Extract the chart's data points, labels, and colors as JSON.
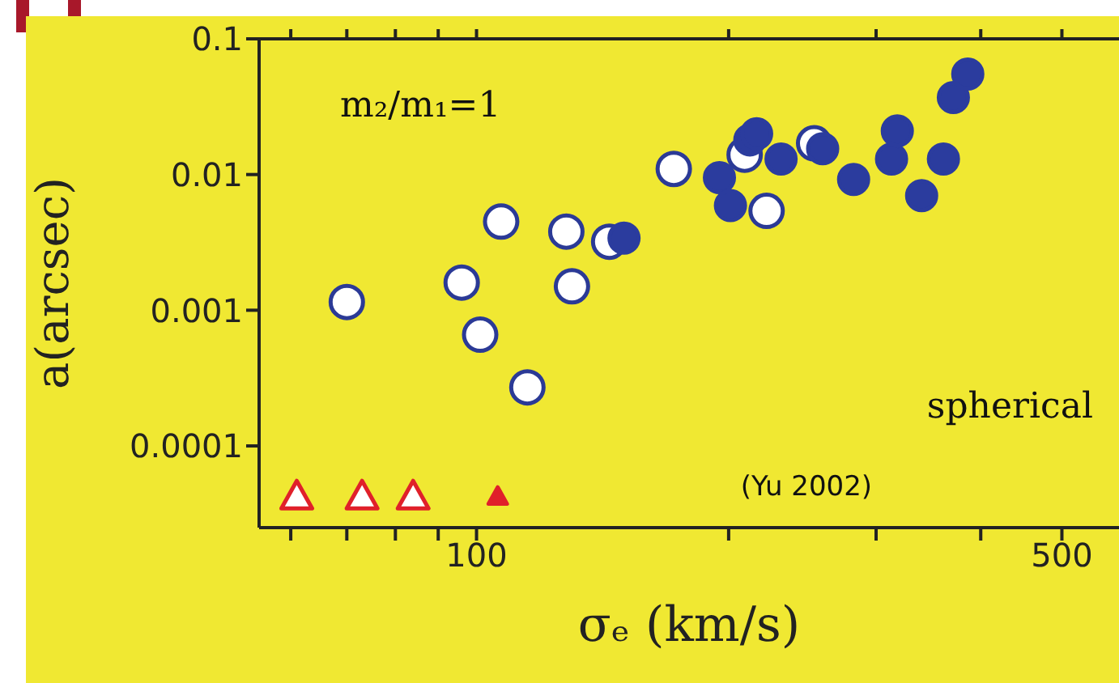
{
  "chart_data": {
    "type": "scatter",
    "xlabel": "σₑ (km/s)",
    "ylabel": "a(arcsec)",
    "annotations": [
      "m₂/m₁=1",
      "spherical",
      "(Yu 2002)"
    ],
    "log": "xy",
    "xlim": [
      55,
      585
    ],
    "xticks": [
      {
        "value": 60,
        "label": null
      },
      {
        "value": 70,
        "label": null
      },
      {
        "value": 80,
        "label": null
      },
      {
        "value": 90,
        "label": null
      },
      100,
      {
        "value": 200,
        "label": null
      },
      {
        "value": 300,
        "label": null
      },
      {
        "value": 400,
        "label": null
      },
      500
    ],
    "ylim": [
      2.5e-05,
      0.1
    ],
    "yticks": [
      0.0001,
      0.001,
      0.01,
      0.1
    ],
    "series": [
      {
        "marker": "circle",
        "color": "#2b3a96",
        "x": [
          70,
          96,
          101,
          107,
          115,
          128,
          130,
          144,
          172,
          209,
          222,
          253
        ],
        "values": [
          0.00115,
          0.0016,
          0.00066,
          0.0045,
          0.00027,
          0.0038,
          0.0015,
          0.0032,
          0.011,
          0.014,
          0.0054,
          0.017
        ]
      },
      {
        "marker": "circle",
        "color": "#2b3c9e",
        "x": [
          150,
          195,
          201,
          212,
          216,
          231,
          259,
          282,
          313,
          318,
          340,
          361,
          371,
          386
        ],
        "values": [
          0.0034,
          0.0095,
          0.0059,
          0.018,
          0.02,
          0.013,
          0.0155,
          0.0092,
          0.013,
          0.021,
          0.007,
          0.013,
          0.037,
          0.055
        ]
      },
      {
        "marker": "triangle",
        "color": "#e0202a",
        "x": [
          61,
          73,
          84
        ],
        "values": [
          4.2e-05,
          4.2e-05,
          4.2e-05
        ]
      },
      {
        "marker": "triangle",
        "color": "#e0202a",
        "x": [
          106
        ],
        "values": [
          4.2e-05
        ]
      }
    ]
  }
}
